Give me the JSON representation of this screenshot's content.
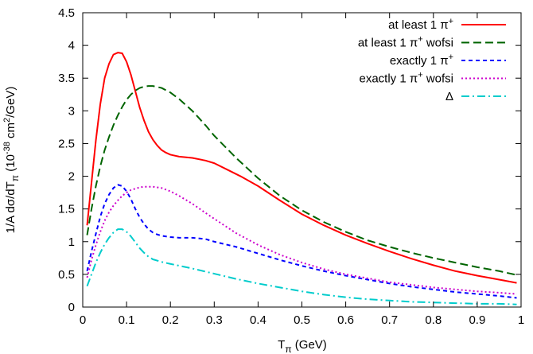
{
  "chart_data": {
    "type": "line",
    "xlabel": {
      "main": "T",
      "sub": "π",
      "rest": " (GeV)"
    },
    "ylabel": {
      "pre": "1/A dσ/dT",
      "sub": "π",
      "mid": " (10",
      "sup": "-38",
      "post": " cm",
      "sup2": "2",
      "end": "/GeV)"
    },
    "xlim": [
      0,
      1
    ],
    "ylim": [
      0,
      4.5
    ],
    "xticks": [
      "0",
      "0.1",
      "0.2",
      "0.3",
      "0.4",
      "0.5",
      "0.6",
      "0.7",
      "0.8",
      "0.9",
      "1"
    ],
    "yticks": [
      "0",
      "0.5",
      "1",
      "1.5",
      "2",
      "2.5",
      "3",
      "3.5",
      "4",
      "4.5"
    ],
    "grid": false,
    "legend_position": "top-right",
    "series": [
      {
        "name": "at least 1 π+",
        "label_parts": {
          "text": "at least 1 π",
          "sup": "+",
          "after": ""
        },
        "color": "#ff0000",
        "dash": "",
        "points": [
          [
            0.01,
            1.25
          ],
          [
            0.02,
            1.9
          ],
          [
            0.03,
            2.55
          ],
          [
            0.04,
            3.1
          ],
          [
            0.05,
            3.5
          ],
          [
            0.06,
            3.72
          ],
          [
            0.07,
            3.86
          ],
          [
            0.08,
            3.89
          ],
          [
            0.09,
            3.88
          ],
          [
            0.1,
            3.75
          ],
          [
            0.11,
            3.55
          ],
          [
            0.12,
            3.3
          ],
          [
            0.13,
            3.05
          ],
          [
            0.14,
            2.85
          ],
          [
            0.15,
            2.68
          ],
          [
            0.16,
            2.56
          ],
          [
            0.17,
            2.47
          ],
          [
            0.18,
            2.4
          ],
          [
            0.19,
            2.36
          ],
          [
            0.2,
            2.33
          ],
          [
            0.22,
            2.3
          ],
          [
            0.25,
            2.28
          ],
          [
            0.28,
            2.24
          ],
          [
            0.3,
            2.2
          ],
          [
            0.33,
            2.1
          ],
          [
            0.36,
            2.0
          ],
          [
            0.4,
            1.85
          ],
          [
            0.45,
            1.63
          ],
          [
            0.5,
            1.42
          ],
          [
            0.55,
            1.25
          ],
          [
            0.6,
            1.1
          ],
          [
            0.65,
            0.97
          ],
          [
            0.7,
            0.85
          ],
          [
            0.75,
            0.74
          ],
          [
            0.8,
            0.64
          ],
          [
            0.85,
            0.55
          ],
          [
            0.9,
            0.48
          ],
          [
            0.95,
            0.42
          ],
          [
            0.99,
            0.37
          ]
        ]
      },
      {
        "name": "at least 1 π+ wofsi",
        "label_parts": {
          "text": "at least 1 π",
          "sup": "+",
          "after": " wofsi"
        },
        "color": "#006400",
        "dash": "10,5",
        "points": [
          [
            0.01,
            1.1
          ],
          [
            0.02,
            1.5
          ],
          [
            0.03,
            1.85
          ],
          [
            0.04,
            2.15
          ],
          [
            0.05,
            2.4
          ],
          [
            0.06,
            2.6
          ],
          [
            0.07,
            2.78
          ],
          [
            0.08,
            2.93
          ],
          [
            0.09,
            3.06
          ],
          [
            0.1,
            3.17
          ],
          [
            0.11,
            3.25
          ],
          [
            0.12,
            3.31
          ],
          [
            0.13,
            3.35
          ],
          [
            0.14,
            3.37
          ],
          [
            0.15,
            3.38
          ],
          [
            0.16,
            3.38
          ],
          [
            0.18,
            3.35
          ],
          [
            0.2,
            3.28
          ],
          [
            0.22,
            3.18
          ],
          [
            0.25,
            3.0
          ],
          [
            0.28,
            2.78
          ],
          [
            0.3,
            2.62
          ],
          [
            0.35,
            2.28
          ],
          [
            0.4,
            1.97
          ],
          [
            0.45,
            1.7
          ],
          [
            0.5,
            1.48
          ],
          [
            0.55,
            1.3
          ],
          [
            0.6,
            1.15
          ],
          [
            0.65,
            1.02
          ],
          [
            0.7,
            0.92
          ],
          [
            0.75,
            0.83
          ],
          [
            0.8,
            0.75
          ],
          [
            0.85,
            0.68
          ],
          [
            0.9,
            0.61
          ],
          [
            0.95,
            0.55
          ],
          [
            0.99,
            0.49
          ]
        ]
      },
      {
        "name": "exactly 1 π+",
        "label_parts": {
          "text": "exactly 1 π",
          "sup": "+",
          "after": ""
        },
        "color": "#0000ff",
        "dash": "5,4",
        "points": [
          [
            0.01,
            0.55
          ],
          [
            0.02,
            0.85
          ],
          [
            0.03,
            1.12
          ],
          [
            0.04,
            1.38
          ],
          [
            0.05,
            1.58
          ],
          [
            0.06,
            1.72
          ],
          [
            0.07,
            1.82
          ],
          [
            0.08,
            1.87
          ],
          [
            0.09,
            1.85
          ],
          [
            0.1,
            1.77
          ],
          [
            0.11,
            1.65
          ],
          [
            0.12,
            1.5
          ],
          [
            0.13,
            1.37
          ],
          [
            0.14,
            1.27
          ],
          [
            0.15,
            1.19
          ],
          [
            0.16,
            1.14
          ],
          [
            0.17,
            1.11
          ],
          [
            0.18,
            1.09
          ],
          [
            0.2,
            1.07
          ],
          [
            0.22,
            1.06
          ],
          [
            0.25,
            1.06
          ],
          [
            0.28,
            1.04
          ],
          [
            0.3,
            1.0
          ],
          [
            0.35,
            0.92
          ],
          [
            0.4,
            0.82
          ],
          [
            0.45,
            0.72
          ],
          [
            0.5,
            0.63
          ],
          [
            0.55,
            0.55
          ],
          [
            0.6,
            0.48
          ],
          [
            0.65,
            0.42
          ],
          [
            0.7,
            0.36
          ],
          [
            0.75,
            0.31
          ],
          [
            0.8,
            0.27
          ],
          [
            0.85,
            0.23
          ],
          [
            0.9,
            0.2
          ],
          [
            0.95,
            0.17
          ],
          [
            0.99,
            0.14
          ]
        ]
      },
      {
        "name": "exactly 1 π+ wofsi",
        "label_parts": {
          "text": "exactly 1 π",
          "sup": "+",
          "after": " wofsi"
        },
        "color": "#cc00cc",
        "dash": "2,3",
        "points": [
          [
            0.01,
            0.45
          ],
          [
            0.02,
            0.72
          ],
          [
            0.03,
            0.95
          ],
          [
            0.04,
            1.15
          ],
          [
            0.05,
            1.32
          ],
          [
            0.06,
            1.45
          ],
          [
            0.07,
            1.55
          ],
          [
            0.08,
            1.63
          ],
          [
            0.09,
            1.7
          ],
          [
            0.1,
            1.75
          ],
          [
            0.11,
            1.79
          ],
          [
            0.12,
            1.81
          ],
          [
            0.13,
            1.83
          ],
          [
            0.14,
            1.84
          ],
          [
            0.15,
            1.84
          ],
          [
            0.16,
            1.84
          ],
          [
            0.18,
            1.82
          ],
          [
            0.2,
            1.77
          ],
          [
            0.22,
            1.7
          ],
          [
            0.25,
            1.58
          ],
          [
            0.28,
            1.44
          ],
          [
            0.3,
            1.35
          ],
          [
            0.35,
            1.13
          ],
          [
            0.4,
            0.95
          ],
          [
            0.45,
            0.8
          ],
          [
            0.5,
            0.68
          ],
          [
            0.55,
            0.58
          ],
          [
            0.6,
            0.5
          ],
          [
            0.65,
            0.44
          ],
          [
            0.7,
            0.38
          ],
          [
            0.75,
            0.34
          ],
          [
            0.8,
            0.3
          ],
          [
            0.85,
            0.27
          ],
          [
            0.9,
            0.24
          ],
          [
            0.95,
            0.22
          ],
          [
            0.99,
            0.2
          ]
        ]
      },
      {
        "name": "Δ",
        "label_parts": {
          "text": "Δ",
          "sup": "",
          "after": ""
        },
        "color": "#00cccc",
        "dash": "10,4,2,4",
        "points": [
          [
            0.01,
            0.32
          ],
          [
            0.02,
            0.5
          ],
          [
            0.03,
            0.68
          ],
          [
            0.04,
            0.83
          ],
          [
            0.05,
            0.96
          ],
          [
            0.06,
            1.06
          ],
          [
            0.07,
            1.14
          ],
          [
            0.08,
            1.19
          ],
          [
            0.09,
            1.19
          ],
          [
            0.1,
            1.15
          ],
          [
            0.11,
            1.08
          ],
          [
            0.12,
            0.99
          ],
          [
            0.13,
            0.9
          ],
          [
            0.14,
            0.83
          ],
          [
            0.15,
            0.77
          ],
          [
            0.16,
            0.73
          ],
          [
            0.18,
            0.69
          ],
          [
            0.2,
            0.66
          ],
          [
            0.25,
            0.59
          ],
          [
            0.3,
            0.51
          ],
          [
            0.35,
            0.43
          ],
          [
            0.4,
            0.36
          ],
          [
            0.45,
            0.3
          ],
          [
            0.5,
            0.24
          ],
          [
            0.55,
            0.19
          ],
          [
            0.6,
            0.15
          ],
          [
            0.65,
            0.12
          ],
          [
            0.7,
            0.1
          ],
          [
            0.75,
            0.08
          ],
          [
            0.8,
            0.07
          ],
          [
            0.85,
            0.06
          ],
          [
            0.9,
            0.05
          ],
          [
            0.95,
            0.05
          ],
          [
            0.99,
            0.04
          ]
        ]
      }
    ]
  }
}
